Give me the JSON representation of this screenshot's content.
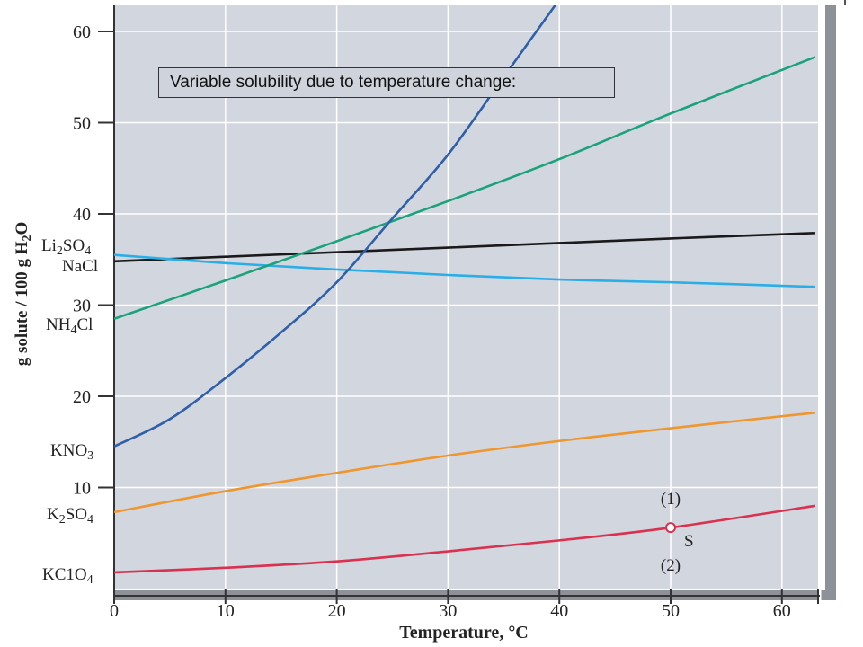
{
  "chart_data": {
    "type": "line",
    "title": "",
    "xlabel": "Temperature, °C",
    "ylabel": "g solute / 100 g H2O",
    "xlim": [
      0,
      63
    ],
    "ylim": [
      0,
      63
    ],
    "x_ticks": [
      0,
      10,
      20,
      30,
      40,
      50,
      60
    ],
    "y_ticks": [
      10,
      20,
      30,
      40,
      50,
      60
    ],
    "grid": true,
    "annotation": "Variable solubility due to temperature change:",
    "series": [
      {
        "name": "Li2SO4",
        "label_main": "Li",
        "label_sub1": "2",
        "label_mid": "SO",
        "label_sub2": "4",
        "color": "#1a1a1a",
        "x": [
          0,
          10,
          20,
          30,
          40,
          50,
          63
        ],
        "y": [
          34.8,
          35.3,
          35.8,
          36.3,
          36.8,
          37.3,
          37.9
        ]
      },
      {
        "name": "NaCl",
        "label_main": "NaCl",
        "label_sub1": "",
        "label_mid": "",
        "label_sub2": "",
        "color": "#2aaee8",
        "x": [
          0,
          10,
          20,
          30,
          40,
          50,
          63
        ],
        "y": [
          35.5,
          34.6,
          33.9,
          33.3,
          32.8,
          32.5,
          32.0
        ]
      },
      {
        "name": "NH4Cl",
        "label_main": "NH",
        "label_sub1": "4",
        "label_mid": "Cl",
        "label_sub2": "",
        "color": "#1aa37a",
        "x": [
          0,
          10,
          20,
          30,
          40,
          50,
          63
        ],
        "y": [
          28.5,
          32.7,
          37.0,
          41.4,
          46.0,
          51.0,
          57.2
        ]
      },
      {
        "name": "KNO3",
        "label_main": "KNO",
        "label_sub1": "3",
        "label_mid": "",
        "label_sub2": "",
        "color": "#2e5fa8",
        "x": [
          0,
          5,
          10,
          15,
          20,
          25,
          30,
          35,
          40,
          41.5
        ],
        "y": [
          14.5,
          17.5,
          22.0,
          27.0,
          32.5,
          39.5,
          46.5,
          55.0,
          63.5,
          66.0
        ]
      },
      {
        "name": "K2SO4",
        "label_main": "K",
        "label_sub1": "2",
        "label_mid": "SO",
        "label_sub2": "4",
        "color": "#f0962e",
        "x": [
          0,
          10,
          20,
          30,
          40,
          50,
          63
        ],
        "y": [
          7.3,
          9.6,
          11.6,
          13.5,
          15.1,
          16.5,
          18.2
        ]
      },
      {
        "name": "KClO4",
        "label_main": "KC1O",
        "label_sub1": "4",
        "label_mid": "",
        "label_sub2": "",
        "color": "#d9314f",
        "x": [
          0,
          10,
          20,
          30,
          40,
          50,
          63
        ],
        "y": [
          0.7,
          1.2,
          1.9,
          3.0,
          4.2,
          5.6,
          8.0
        ]
      }
    ],
    "point": {
      "label": "S",
      "x": 50,
      "y": 5.6,
      "above": "(1)",
      "below": "(2)"
    }
  }
}
